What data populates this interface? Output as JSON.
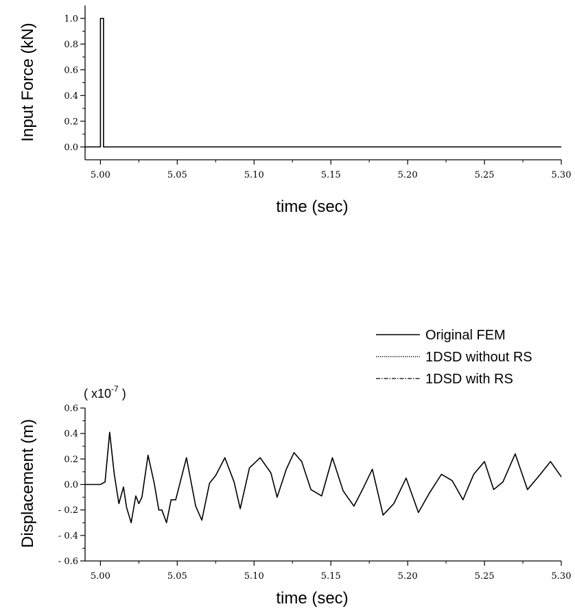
{
  "chart_data": [
    {
      "type": "line",
      "xlabel": "time (sec)",
      "ylabel": "Input Force (kN)",
      "xlim": [
        4.99,
        5.3
      ],
      "ylim": [
        -0.1,
        1.1
      ],
      "xticks": [
        "5.00",
        "5.05",
        "5.10",
        "5.15",
        "5.20",
        "5.25",
        "5.30"
      ],
      "yticks": [
        "0.0",
        "0.2",
        "0.4",
        "0.6",
        "0.8",
        "1.0"
      ],
      "series": [
        {
          "x": [
            4.99,
            5.0,
            5.0,
            5.002,
            5.002,
            5.3
          ],
          "y": [
            0.0,
            0.0,
            1.0,
            1.0,
            0.0,
            0.0
          ]
        }
      ]
    },
    {
      "type": "line",
      "xlabel": "time (sec)",
      "ylabel": "Displacement (m)",
      "multiplier_base": "( x10",
      "multiplier_exp": "-7",
      "multiplier_close": " )",
      "xlim": [
        4.99,
        5.3
      ],
      "ylim": [
        -0.6,
        0.6
      ],
      "xticks": [
        "5.00",
        "5.05",
        "5.10",
        "5.15",
        "5.20",
        "5.25",
        "5.30"
      ],
      "yticks": [
        "- 0.6",
        "- 0.4",
        "- 0.2",
        "0.0",
        "0.2",
        "0.4",
        "0.6"
      ],
      "legend_position": "top-right",
      "series": [
        {
          "name": "Original FEM",
          "style": "solid",
          "x": [
            4.99,
            5.0,
            5.003,
            5.006,
            5.009,
            5.012,
            5.015,
            5.017,
            5.02,
            5.023,
            5.025,
            5.027,
            5.031,
            5.035,
            5.038,
            5.04,
            5.043,
            5.046,
            5.049,
            5.056,
            5.062,
            5.066,
            5.071,
            5.075,
            5.081,
            5.087,
            5.091,
            5.097,
            5.104,
            5.111,
            5.115,
            5.121,
            5.126,
            5.131,
            5.137,
            5.144,
            5.151,
            5.158,
            5.165,
            5.171,
            5.177,
            5.184,
            5.191,
            5.199,
            5.207,
            5.214,
            5.222,
            5.229,
            5.236,
            5.243,
            5.25,
            5.256,
            5.262,
            5.27,
            5.278,
            5.285,
            5.293,
            5.3
          ],
          "y": [
            0.0,
            0.0,
            0.02,
            0.41,
            0.08,
            -0.15,
            -0.02,
            -0.18,
            -0.3,
            -0.09,
            -0.15,
            -0.1,
            0.23,
            0.01,
            -0.2,
            -0.2,
            -0.3,
            -0.12,
            -0.12,
            0.21,
            -0.17,
            -0.28,
            0.01,
            0.07,
            0.21,
            0.02,
            -0.19,
            0.13,
            0.21,
            0.09,
            -0.1,
            0.12,
            0.25,
            0.18,
            -0.04,
            -0.09,
            0.21,
            -0.05,
            -0.17,
            -0.03,
            0.12,
            -0.24,
            -0.15,
            0.05,
            -0.22,
            -0.07,
            0.08,
            0.03,
            -0.12,
            0.08,
            0.18,
            -0.04,
            0.02,
            0.24,
            -0.04,
            0.06,
            0.18,
            0.06
          ]
        },
        {
          "name": "1DSD without RS",
          "style": "dotted",
          "x": [
            4.99,
            5.0,
            5.003,
            5.006,
            5.009,
            5.012,
            5.015,
            5.017,
            5.02,
            5.023,
            5.025,
            5.027,
            5.031,
            5.035,
            5.038,
            5.04,
            5.043,
            5.046,
            5.049,
            5.056,
            5.062,
            5.066,
            5.071,
            5.075,
            5.081,
            5.087,
            5.091,
            5.097,
            5.104,
            5.111,
            5.115,
            5.121,
            5.126,
            5.131,
            5.137,
            5.144,
            5.151,
            5.158,
            5.165,
            5.171,
            5.177,
            5.184,
            5.191,
            5.199,
            5.207,
            5.214,
            5.222,
            5.229,
            5.236,
            5.243,
            5.25,
            5.256,
            5.262,
            5.27,
            5.278,
            5.285,
            5.293,
            5.3
          ],
          "y": [
            0.0,
            0.0,
            0.02,
            0.41,
            0.08,
            -0.15,
            -0.02,
            -0.18,
            -0.3,
            -0.09,
            -0.15,
            -0.1,
            0.23,
            0.01,
            -0.2,
            -0.2,
            -0.3,
            -0.12,
            -0.12,
            0.21,
            -0.17,
            -0.28,
            0.01,
            0.07,
            0.21,
            0.02,
            -0.19,
            0.13,
            0.21,
            0.09,
            -0.1,
            0.12,
            0.25,
            0.18,
            -0.04,
            -0.09,
            0.21,
            -0.05,
            -0.17,
            -0.03,
            0.12,
            -0.24,
            -0.15,
            0.05,
            -0.22,
            -0.07,
            0.08,
            0.03,
            -0.12,
            0.08,
            0.18,
            -0.04,
            0.02,
            0.24,
            -0.04,
            0.06,
            0.18,
            0.06
          ]
        },
        {
          "name": "1DSD with RS",
          "style": "dashdot",
          "x": [
            4.99,
            5.0,
            5.003,
            5.006,
            5.009,
            5.012,
            5.015,
            5.017,
            5.02,
            5.023,
            5.025,
            5.027,
            5.031,
            5.035,
            5.038,
            5.04,
            5.043,
            5.046,
            5.049,
            5.056,
            5.062,
            5.066,
            5.071,
            5.075,
            5.081,
            5.087,
            5.091,
            5.097,
            5.104,
            5.111,
            5.115,
            5.121,
            5.126,
            5.131,
            5.137,
            5.144,
            5.151,
            5.158,
            5.165,
            5.171,
            5.177,
            5.184,
            5.191,
            5.199,
            5.207,
            5.214,
            5.222,
            5.229,
            5.236,
            5.243,
            5.25,
            5.256,
            5.262,
            5.27,
            5.278,
            5.285,
            5.293,
            5.3
          ],
          "y": [
            0.0,
            0.0,
            0.02,
            0.41,
            0.08,
            -0.15,
            -0.02,
            -0.18,
            -0.3,
            -0.09,
            -0.15,
            -0.1,
            0.23,
            0.01,
            -0.2,
            -0.2,
            -0.3,
            -0.12,
            -0.12,
            0.21,
            -0.17,
            -0.28,
            0.01,
            0.07,
            0.21,
            0.02,
            -0.19,
            0.13,
            0.21,
            0.09,
            -0.1,
            0.12,
            0.25,
            0.18,
            -0.04,
            -0.09,
            0.21,
            -0.05,
            -0.17,
            -0.03,
            0.12,
            -0.24,
            -0.15,
            0.05,
            -0.22,
            -0.07,
            0.08,
            0.03,
            -0.12,
            0.08,
            0.18,
            -0.04,
            0.02,
            0.24,
            -0.04,
            0.06,
            0.18,
            0.06
          ]
        }
      ]
    }
  ]
}
